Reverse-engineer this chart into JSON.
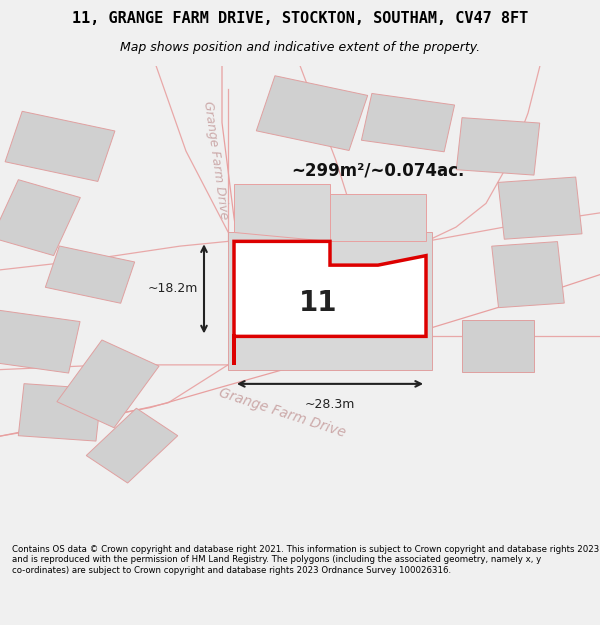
{
  "title_line1": "11, GRANGE FARM DRIVE, STOCKTON, SOUTHAM, CV47 8FT",
  "title_line2": "Map shows position and indicative extent of the property.",
  "footer_text": "Contains OS data © Crown copyright and database right 2021. This information is subject to Crown copyright and database rights 2023 and is reproduced with the permission of HM Land Registry. The polygons (including the associated geometry, namely x, y co-ordinates) are subject to Crown copyright and database rights 2023 Ordnance Survey 100026316.",
  "bg_color": "#f0f0f0",
  "map_bg": "#f8f8f8",
  "road_color": "#e8a0a0",
  "building_color": "#d0d0d0",
  "highlight_border": "#dd0000",
  "area_text": "~299m²/~0.074ac.",
  "label_11": "11",
  "dim_width": "~28.3m",
  "dim_height": "~18.2m",
  "road_label_top": "Grange Farm Drive",
  "road_label_bottom": "Grange Farm Drive"
}
